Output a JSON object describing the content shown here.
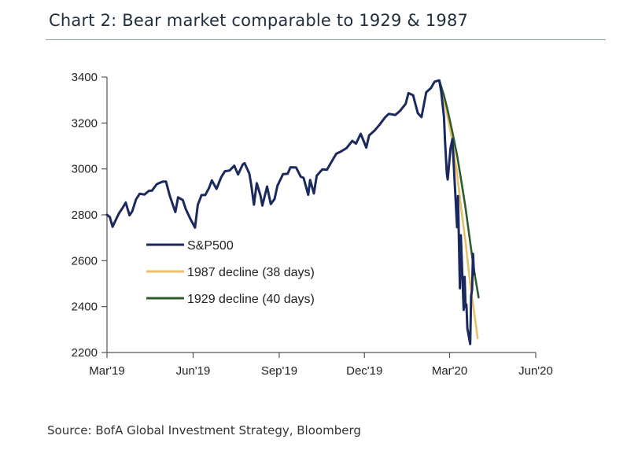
{
  "header": {
    "title": "Chart 2: Bear market comparable to 1929 & 1987"
  },
  "footer": {
    "source": "Source: BofA Global Investment Strategy, Bloomberg"
  },
  "chart_data": {
    "type": "line",
    "title": "Chart 2: Bear market comparable to 1929 & 1987",
    "xlabel": "",
    "ylabel": "",
    "ylim": [
      2200,
      3400
    ],
    "xlim": [
      "2019-03-01",
      "2020-06-01"
    ],
    "y_ticks": [
      2200,
      2400,
      2600,
      2800,
      3000,
      3200,
      3400
    ],
    "x_ticks": [
      {
        "label": "Mar'19",
        "date": "2019-03-01"
      },
      {
        "label": "Jun'19",
        "date": "2019-06-01"
      },
      {
        "label": "Sep'19",
        "date": "2019-09-01"
      },
      {
        "label": "Dec'19",
        "date": "2019-12-01"
      },
      {
        "label": "Mar'20",
        "date": "2020-03-01"
      },
      {
        "label": "Jun'20",
        "date": "2020-06-01"
      }
    ],
    "grid": false,
    "legend_position": "bottom-left",
    "series": [
      {
        "name": "S&P500",
        "color": "#1b2a5e",
        "points": [
          [
            "2019-03-01",
            2800
          ],
          [
            "2019-03-04",
            2790
          ],
          [
            "2019-03-07",
            2748
          ],
          [
            "2019-03-11",
            2783
          ],
          [
            "2019-03-14",
            2808
          ],
          [
            "2019-03-18",
            2832
          ],
          [
            "2019-03-21",
            2854
          ],
          [
            "2019-03-25",
            2798
          ],
          [
            "2019-03-28",
            2815
          ],
          [
            "2019-04-01",
            2867
          ],
          [
            "2019-04-05",
            2892
          ],
          [
            "2019-04-10",
            2888
          ],
          [
            "2019-04-15",
            2905
          ],
          [
            "2019-04-18",
            2905
          ],
          [
            "2019-04-23",
            2933
          ],
          [
            "2019-04-26",
            2939
          ],
          [
            "2019-04-30",
            2945
          ],
          [
            "2019-05-03",
            2945
          ],
          [
            "2019-05-07",
            2884
          ],
          [
            "2019-05-13",
            2812
          ],
          [
            "2019-05-16",
            2876
          ],
          [
            "2019-05-21",
            2864
          ],
          [
            "2019-05-24",
            2826
          ],
          [
            "2019-05-29",
            2783
          ],
          [
            "2019-06-03",
            2744
          ],
          [
            "2019-06-06",
            2843
          ],
          [
            "2019-06-10",
            2886
          ],
          [
            "2019-06-14",
            2886
          ],
          [
            "2019-06-18",
            2917
          ],
          [
            "2019-06-21",
            2950
          ],
          [
            "2019-06-26",
            2913
          ],
          [
            "2019-07-01",
            2964
          ],
          [
            "2019-07-05",
            2990
          ],
          [
            "2019-07-10",
            2993
          ],
          [
            "2019-07-15",
            3014
          ],
          [
            "2019-07-19",
            2976
          ],
          [
            "2019-07-24",
            3019
          ],
          [
            "2019-07-26",
            3025
          ],
          [
            "2019-07-31",
            2980
          ],
          [
            "2019-08-02",
            2932
          ],
          [
            "2019-08-05",
            2844
          ],
          [
            "2019-08-08",
            2938
          ],
          [
            "2019-08-12",
            2883
          ],
          [
            "2019-08-14",
            2840
          ],
          [
            "2019-08-19",
            2923
          ],
          [
            "2019-08-23",
            2847
          ],
          [
            "2019-08-27",
            2869
          ],
          [
            "2019-08-30",
            2926
          ],
          [
            "2019-09-05",
            2977
          ],
          [
            "2019-09-10",
            2979
          ],
          [
            "2019-09-13",
            3007
          ],
          [
            "2019-09-19",
            3006
          ],
          [
            "2019-09-24",
            2966
          ],
          [
            "2019-09-27",
            2961
          ],
          [
            "2019-10-02",
            2887
          ],
          [
            "2019-10-04",
            2952
          ],
          [
            "2019-10-08",
            2893
          ],
          [
            "2019-10-11",
            2970
          ],
          [
            "2019-10-17",
            2998
          ],
          [
            "2019-10-22",
            2996
          ],
          [
            "2019-10-28",
            3039
          ],
          [
            "2019-11-01",
            3066
          ],
          [
            "2019-11-06",
            3076
          ],
          [
            "2019-11-12",
            3091
          ],
          [
            "2019-11-18",
            3122
          ],
          [
            "2019-11-22",
            3110
          ],
          [
            "2019-11-27",
            3153
          ],
          [
            "2019-12-03",
            3093
          ],
          [
            "2019-12-06",
            3146
          ],
          [
            "2019-12-12",
            3168
          ],
          [
            "2019-12-17",
            3192
          ],
          [
            "2019-12-23",
            3224
          ],
          [
            "2019-12-27",
            3240
          ],
          [
            "2020-01-03",
            3235
          ],
          [
            "2020-01-08",
            3253
          ],
          [
            "2020-01-14",
            3283
          ],
          [
            "2020-01-17",
            3330
          ],
          [
            "2020-01-22",
            3321
          ],
          [
            "2020-01-27",
            3243
          ],
          [
            "2020-01-31",
            3226
          ],
          [
            "2020-02-05",
            3334
          ],
          [
            "2020-02-10",
            3352
          ],
          [
            "2020-02-14",
            3380
          ],
          [
            "2020-02-19",
            3386
          ],
          [
            "2020-02-21",
            3338
          ],
          [
            "2020-02-24",
            3226
          ],
          [
            "2020-02-25",
            3128
          ],
          [
            "2020-02-27",
            2979
          ],
          [
            "2020-02-28",
            2954
          ],
          [
            "2020-03-02",
            3090
          ],
          [
            "2020-03-04",
            3130
          ],
          [
            "2020-03-06",
            2972
          ],
          [
            "2020-03-09",
            2746
          ],
          [
            "2020-03-10",
            2882
          ],
          [
            "2020-03-12",
            2480
          ],
          [
            "2020-03-13",
            2711
          ],
          [
            "2020-03-16",
            2386
          ],
          [
            "2020-03-17",
            2529
          ],
          [
            "2020-03-18",
            2398
          ],
          [
            "2020-03-19",
            2409
          ],
          [
            "2020-03-20",
            2305
          ],
          [
            "2020-03-23",
            2237
          ],
          [
            "2020-03-24",
            2447
          ],
          [
            "2020-03-25",
            2475
          ],
          [
            "2020-03-26",
            2630
          ],
          [
            "2020-03-27",
            2541
          ]
        ]
      },
      {
        "name": "1987 decline (38 days)",
        "color": "#e8c06a",
        "points": [
          [
            "2020-02-19",
            3386
          ],
          [
            "2020-02-24",
            3300
          ],
          [
            "2020-02-28",
            3225
          ],
          [
            "2020-03-04",
            3120
          ],
          [
            "2020-03-09",
            2980
          ],
          [
            "2020-03-13",
            2840
          ],
          [
            "2020-03-18",
            2680
          ],
          [
            "2020-03-23",
            2500
          ],
          [
            "2020-03-27",
            2380
          ],
          [
            "2020-03-31",
            2262
          ]
        ]
      },
      {
        "name": "1929 decline (40 days)",
        "color": "#2e5c2e",
        "points": [
          [
            "2020-02-19",
            3386
          ],
          [
            "2020-02-24",
            3320
          ],
          [
            "2020-02-28",
            3255
          ],
          [
            "2020-03-04",
            3160
          ],
          [
            "2020-03-09",
            3060
          ],
          [
            "2020-03-13",
            2960
          ],
          [
            "2020-03-18",
            2830
          ],
          [
            "2020-03-23",
            2680
          ],
          [
            "2020-03-27",
            2560
          ],
          [
            "2020-04-01",
            2440
          ]
        ]
      }
    ]
  }
}
